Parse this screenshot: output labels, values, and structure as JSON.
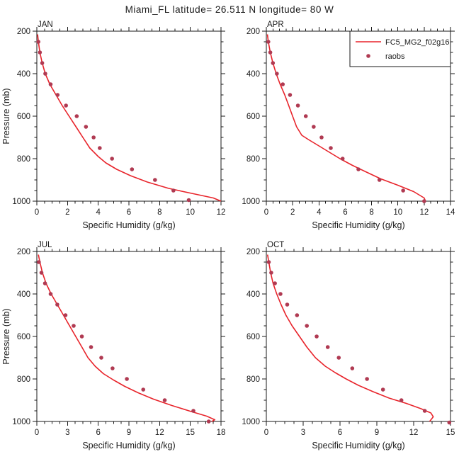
{
  "title": "Miami_FL  latitude= 26.511 N longitude= 80 W",
  "colors": {
    "model": "#e8242b",
    "raobs": "#b03a52",
    "axis": "#1a1a1a"
  },
  "legend": {
    "entries": [
      {
        "label": "FC5_MG2_f02g16",
        "type": "line"
      },
      {
        "label": "raobs",
        "type": "dot"
      }
    ]
  },
  "chart_data": [
    {
      "type": "line",
      "label": "JAN",
      "xlabel": "Specific Humidity (g/kg)",
      "ylabel": "Pressure (mb)",
      "show_ylabel": true,
      "show_legend": false,
      "xlim": [
        0,
        12
      ],
      "xtick_step": 2,
      "ylim": [
        200,
        1000
      ],
      "ytick_step": 200,
      "ytick_minor": 50,
      "series": {
        "model": [
          [
            0.05,
            215
          ],
          [
            0.1,
            250
          ],
          [
            0.2,
            300
          ],
          [
            0.35,
            350
          ],
          [
            0.55,
            400
          ],
          [
            0.85,
            450
          ],
          [
            1.25,
            500
          ],
          [
            1.65,
            550
          ],
          [
            2.1,
            600
          ],
          [
            2.55,
            650
          ],
          [
            3.0,
            700
          ],
          [
            3.45,
            750
          ],
          [
            4.0,
            790
          ],
          [
            4.5,
            820
          ],
          [
            5.2,
            850
          ],
          [
            6.1,
            880
          ],
          [
            7.2,
            910
          ],
          [
            8.6,
            940
          ],
          [
            10.2,
            965
          ],
          [
            11.5,
            985
          ],
          [
            12.0,
            1000
          ]
        ],
        "raobs": [
          [
            0.1,
            250
          ],
          [
            0.2,
            300
          ],
          [
            0.35,
            350
          ],
          [
            0.55,
            400
          ],
          [
            0.9,
            450
          ],
          [
            1.35,
            500
          ],
          [
            1.9,
            550
          ],
          [
            2.6,
            600
          ],
          [
            3.2,
            650
          ],
          [
            3.7,
            700
          ],
          [
            4.1,
            750
          ],
          [
            4.9,
            800
          ],
          [
            6.2,
            850
          ],
          [
            7.7,
            900
          ],
          [
            8.9,
            950
          ],
          [
            9.9,
            995
          ]
        ]
      }
    },
    {
      "type": "line",
      "label": "APR",
      "xlabel": "Specific Humidity (g/kg)",
      "ylabel": "Pressure (mb)",
      "show_ylabel": false,
      "show_legend": true,
      "xlim": [
        0,
        14
      ],
      "xtick_step": 2,
      "ylim": [
        200,
        1000
      ],
      "ytick_step": 200,
      "ytick_minor": 50,
      "series": {
        "model": [
          [
            0.08,
            215
          ],
          [
            0.15,
            250
          ],
          [
            0.3,
            300
          ],
          [
            0.5,
            350
          ],
          [
            0.75,
            400
          ],
          [
            1.05,
            450
          ],
          [
            1.4,
            500
          ],
          [
            1.7,
            550
          ],
          [
            2.0,
            600
          ],
          [
            2.3,
            650
          ],
          [
            2.7,
            690
          ],
          [
            3.2,
            710
          ],
          [
            4.0,
            740
          ],
          [
            4.8,
            770
          ],
          [
            5.6,
            800
          ],
          [
            6.5,
            830
          ],
          [
            7.5,
            860
          ],
          [
            8.7,
            895
          ],
          [
            10.0,
            925
          ],
          [
            11.2,
            955
          ],
          [
            12.0,
            985
          ],
          [
            12.1,
            1000
          ]
        ],
        "raobs": [
          [
            0.15,
            250
          ],
          [
            0.3,
            300
          ],
          [
            0.5,
            350
          ],
          [
            0.8,
            400
          ],
          [
            1.25,
            450
          ],
          [
            1.8,
            500
          ],
          [
            2.4,
            550
          ],
          [
            3.0,
            600
          ],
          [
            3.6,
            650
          ],
          [
            4.2,
            700
          ],
          [
            4.9,
            750
          ],
          [
            5.8,
            800
          ],
          [
            7.0,
            850
          ],
          [
            8.6,
            900
          ],
          [
            10.4,
            950
          ],
          [
            12.0,
            1000
          ]
        ]
      }
    },
    {
      "type": "line",
      "label": "JUL",
      "xlabel": "Specific Humidity (g/kg)",
      "ylabel": "Pressure (mb)",
      "show_ylabel": true,
      "show_legend": false,
      "xlim": [
        0,
        18
      ],
      "xtick_step": 3,
      "ylim": [
        200,
        1000
      ],
      "ytick_step": 200,
      "ytick_minor": 50,
      "series": {
        "model": [
          [
            0.15,
            215
          ],
          [
            0.3,
            250
          ],
          [
            0.55,
            300
          ],
          [
            0.9,
            350
          ],
          [
            1.4,
            400
          ],
          [
            2.0,
            450
          ],
          [
            2.6,
            500
          ],
          [
            3.2,
            550
          ],
          [
            3.8,
            600
          ],
          [
            4.4,
            650
          ],
          [
            5.0,
            700
          ],
          [
            5.7,
            740
          ],
          [
            6.5,
            775
          ],
          [
            7.5,
            805
          ],
          [
            8.6,
            835
          ],
          [
            9.9,
            865
          ],
          [
            11.4,
            895
          ],
          [
            13.2,
            925
          ],
          [
            15.2,
            955
          ],
          [
            16.6,
            975
          ],
          [
            17.4,
            992
          ],
          [
            17.1,
            1000
          ]
        ],
        "raobs": [
          [
            0.2,
            250
          ],
          [
            0.45,
            300
          ],
          [
            0.8,
            350
          ],
          [
            1.35,
            400
          ],
          [
            2.0,
            450
          ],
          [
            2.8,
            500
          ],
          [
            3.6,
            550
          ],
          [
            4.4,
            600
          ],
          [
            5.3,
            650
          ],
          [
            6.3,
            700
          ],
          [
            7.4,
            750
          ],
          [
            8.8,
            800
          ],
          [
            10.4,
            850
          ],
          [
            12.5,
            900
          ],
          [
            15.3,
            950
          ],
          [
            16.8,
            1000
          ]
        ]
      }
    },
    {
      "type": "line",
      "label": "OCT",
      "xlabel": "Specific Humidity (g/kg)",
      "ylabel": "Pressure (mb)",
      "show_ylabel": false,
      "show_legend": false,
      "xlim": [
        0,
        15
      ],
      "xtick_step": 3,
      "ylim": [
        200,
        1000
      ],
      "ytick_step": 200,
      "ytick_minor": 50,
      "series": {
        "model": [
          [
            0.1,
            215
          ],
          [
            0.2,
            250
          ],
          [
            0.35,
            300
          ],
          [
            0.55,
            350
          ],
          [
            0.85,
            400
          ],
          [
            1.2,
            450
          ],
          [
            1.6,
            500
          ],
          [
            2.1,
            550
          ],
          [
            2.7,
            600
          ],
          [
            3.3,
            650
          ],
          [
            4.0,
            700
          ],
          [
            4.8,
            740
          ],
          [
            5.6,
            770
          ],
          [
            6.5,
            800
          ],
          [
            7.5,
            830
          ],
          [
            8.7,
            860
          ],
          [
            10.0,
            890
          ],
          [
            11.4,
            915
          ],
          [
            12.6,
            940
          ],
          [
            13.4,
            960
          ],
          [
            13.6,
            978
          ],
          [
            13.3,
            1000
          ]
        ],
        "raobs": [
          [
            0.2,
            250
          ],
          [
            0.4,
            300
          ],
          [
            0.7,
            350
          ],
          [
            1.15,
            400
          ],
          [
            1.7,
            450
          ],
          [
            2.5,
            500
          ],
          [
            3.3,
            550
          ],
          [
            4.1,
            600
          ],
          [
            5.0,
            650
          ],
          [
            5.9,
            700
          ],
          [
            7.0,
            750
          ],
          [
            8.2,
            800
          ],
          [
            9.5,
            850
          ],
          [
            11.0,
            900
          ],
          [
            12.9,
            950
          ],
          [
            14.9,
            1005
          ]
        ]
      }
    }
  ]
}
